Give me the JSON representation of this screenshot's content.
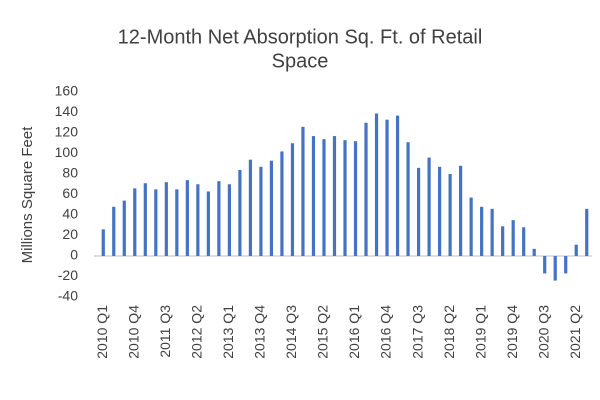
{
  "chart_data": {
    "type": "bar",
    "title": [
      "12-Month Net Absorption Sq. Ft. of Retail",
      "Space"
    ],
    "y_label": "Millions Square Feet",
    "categories": [
      "2010 Q1",
      null,
      null,
      "2010 Q4",
      null,
      null,
      "2011 Q3",
      null,
      null,
      "2012 Q2",
      null,
      null,
      "2013 Q1",
      null,
      null,
      "2013 Q4",
      null,
      null,
      "2014 Q3",
      null,
      null,
      "2015 Q2",
      null,
      null,
      "2016 Q1",
      null,
      null,
      "2016 Q4",
      null,
      null,
      "2017 Q3",
      null,
      null,
      "2018 Q2",
      null,
      null,
      "2019 Q1",
      null,
      null,
      "2019 Q4",
      null,
      null,
      "2020 Q3",
      null,
      null,
      "2021 Q2",
      null
    ],
    "values": [
      26,
      48,
      54,
      66,
      71,
      65,
      72,
      65,
      74,
      70,
      63,
      73,
      70,
      84,
      94,
      87,
      93,
      102,
      110,
      126,
      117,
      114,
      117,
      113,
      112,
      130,
      139,
      133,
      137,
      111,
      86,
      96,
      87,
      80,
      88,
      57,
      48,
      46,
      29,
      35,
      28,
      7,
      -17,
      -24,
      -17,
      11,
      46
    ],
    "color": "#4472c4",
    "ylim": [
      -40,
      160
    ],
    "yticks": [
      -40,
      -20,
      0,
      20,
      40,
      60,
      80,
      100,
      120,
      140,
      160
    ],
    "grid": false
  }
}
